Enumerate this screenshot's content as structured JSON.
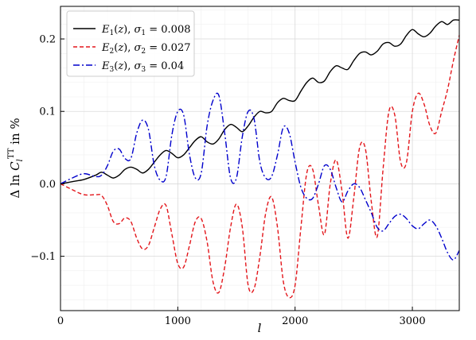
{
  "chart_data": {
    "type": "line",
    "xlabel": "l",
    "ylabel": "Δ ln C_l^TT in %",
    "xlim": [
      0,
      3400
    ],
    "ylim": [
      -0.175,
      0.245
    ],
    "grid": true,
    "legend_position": "top-left",
    "x_ticks": [
      0,
      1000,
      2000,
      3000
    ],
    "x_tick_labels": [
      "0",
      "1000",
      "2000",
      "3000"
    ],
    "y_ticks": [
      -0.1,
      0.0,
      0.1,
      0.2
    ],
    "y_tick_labels": [
      "−0.1",
      "0.0",
      "0.1",
      "0.2"
    ],
    "x": [
      0,
      100,
      200,
      300,
      350,
      400,
      450,
      500,
      550,
      600,
      650,
      700,
      750,
      800,
      850,
      900,
      950,
      1000,
      1050,
      1100,
      1150,
      1200,
      1250,
      1300,
      1350,
      1400,
      1450,
      1500,
      1550,
      1600,
      1650,
      1700,
      1750,
      1800,
      1850,
      1900,
      1950,
      2000,
      2050,
      2100,
      2150,
      2200,
      2250,
      2300,
      2350,
      2400,
      2450,
      2500,
      2550,
      2600,
      2650,
      2700,
      2750,
      2800,
      2850,
      2900,
      2950,
      3000,
      3050,
      3100,
      3150,
      3200,
      3250,
      3300,
      3350,
      3400
    ],
    "series": [
      {
        "name": "E_1(z), σ_1 = 0.008",
        "color": "#000000",
        "dash": "solid",
        "values": [
          0.0,
          0.003,
          0.006,
          0.012,
          0.016,
          0.012,
          0.008,
          0.012,
          0.02,
          0.023,
          0.02,
          0.015,
          0.02,
          0.03,
          0.04,
          0.046,
          0.042,
          0.036,
          0.04,
          0.05,
          0.06,
          0.065,
          0.058,
          0.055,
          0.062,
          0.075,
          0.082,
          0.078,
          0.072,
          0.08,
          0.092,
          0.1,
          0.098,
          0.1,
          0.112,
          0.118,
          0.115,
          0.115,
          0.128,
          0.14,
          0.146,
          0.14,
          0.142,
          0.155,
          0.163,
          0.16,
          0.158,
          0.17,
          0.18,
          0.182,
          0.178,
          0.183,
          0.193,
          0.195,
          0.19,
          0.193,
          0.205,
          0.213,
          0.207,
          0.203,
          0.208,
          0.218,
          0.224,
          0.22,
          0.226,
          0.226
        ]
      },
      {
        "name": "E_2(z), σ_2 = 0.027",
        "color": "#e3161b",
        "dash": "dashed",
        "values": [
          0.0,
          -0.008,
          -0.015,
          -0.015,
          -0.016,
          -0.03,
          -0.052,
          -0.055,
          -0.047,
          -0.052,
          -0.075,
          -0.09,
          -0.085,
          -0.06,
          -0.035,
          -0.03,
          -0.07,
          -0.11,
          -0.115,
          -0.085,
          -0.052,
          -0.048,
          -0.08,
          -0.135,
          -0.15,
          -0.115,
          -0.06,
          -0.028,
          -0.06,
          -0.14,
          -0.145,
          -0.1,
          -0.04,
          -0.018,
          -0.06,
          -0.135,
          -0.157,
          -0.14,
          -0.06,
          0.015,
          0.02,
          -0.03,
          -0.07,
          0.0,
          0.033,
          -0.01,
          -0.075,
          -0.02,
          0.05,
          0.048,
          -0.025,
          -0.073,
          0.02,
          0.1,
          0.095,
          0.03,
          0.03,
          0.1,
          0.125,
          0.11,
          0.08,
          0.07,
          0.1,
          0.13,
          0.17,
          0.205
        ]
      },
      {
        "name": "E_3(z), σ_3 = 0.04",
        "color": "#0000cc",
        "dash": "dashdot",
        "values": [
          0.0,
          0.008,
          0.014,
          0.01,
          0.012,
          0.025,
          0.045,
          0.048,
          0.035,
          0.035,
          0.07,
          0.088,
          0.075,
          0.025,
          0.005,
          0.01,
          0.068,
          0.1,
          0.095,
          0.04,
          0.008,
          0.015,
          0.08,
          0.115,
          0.122,
          0.07,
          0.008,
          0.008,
          0.065,
          0.1,
          0.09,
          0.03,
          0.008,
          0.01,
          0.04,
          0.078,
          0.07,
          0.03,
          -0.005,
          -0.02,
          -0.02,
          0.0,
          0.025,
          0.02,
          -0.005,
          -0.025,
          -0.01,
          0.0,
          -0.005,
          -0.022,
          -0.04,
          -0.06,
          -0.065,
          -0.055,
          -0.045,
          -0.042,
          -0.048,
          -0.058,
          -0.062,
          -0.055,
          -0.05,
          -0.058,
          -0.075,
          -0.095,
          -0.105,
          -0.092
        ]
      }
    ]
  }
}
